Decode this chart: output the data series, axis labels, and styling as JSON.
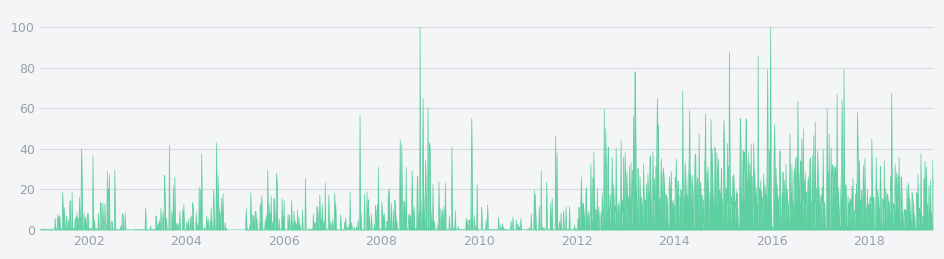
{
  "background_color": "#f4f5f7",
  "plot_bg_color": "#f4f5f7",
  "fill_color": "#5ecfa0",
  "fill_alpha": 1.0,
  "line_color": "#5ecfa0",
  "line_width": 0.5,
  "ylim": [
    0,
    108
  ],
  "yticks": [
    0,
    20,
    40,
    60,
    80,
    100
  ],
  "grid_color": "#d5d8de",
  "tick_color": "#9aa0ac",
  "tick_fontsize": 9,
  "x_start_year": 2001.0,
  "x_end_year": 2019.3,
  "xtick_years": [
    2002,
    2004,
    2006,
    2008,
    2010,
    2012,
    2014,
    2016,
    2018
  ],
  "num_points": 1800,
  "seed": 7
}
